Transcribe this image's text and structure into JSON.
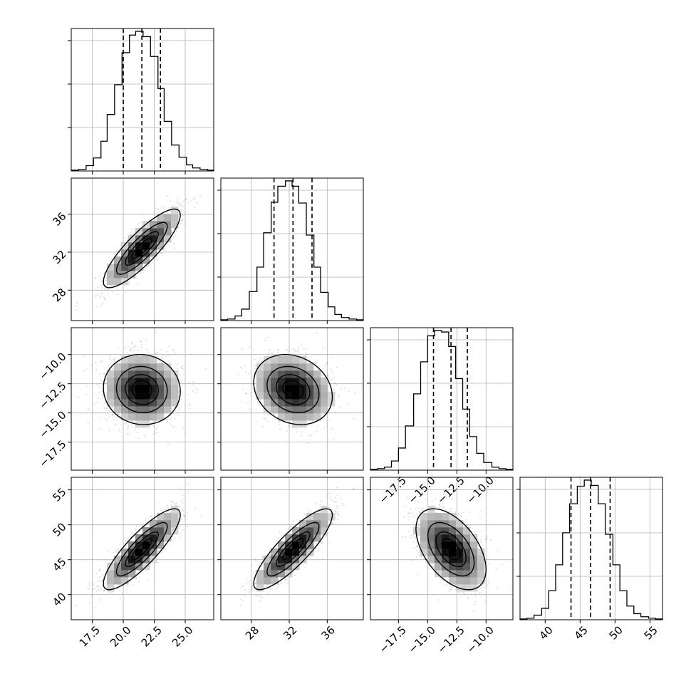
{
  "figure": {
    "type": "corner-plot",
    "colors": {
      "line": "#000000",
      "grid": "#b0b0b0",
      "scatter": "#8a8a8a",
      "density_low": "#ffffff",
      "density_high": "#000000",
      "background": "#ffffff"
    }
  },
  "chart_data": [
    {
      "type": "histogram",
      "panel": "hist-param-1",
      "parameter_index": 0,
      "xlim": [
        15.8,
        27.3
      ],
      "x_ticks": [
        17.5,
        20.0,
        22.5,
        25.0
      ],
      "x_tick_labels": [],
      "quantiles": [
        20.0,
        21.5,
        23.0
      ],
      "bin_edges": [
        15.8,
        16.4,
        17.0,
        17.6,
        18.2,
        18.7,
        19.3,
        19.9,
        20.5,
        21.0,
        21.6,
        22.2,
        22.8,
        23.3,
        23.9,
        24.5,
        25.1,
        25.6,
        26.2,
        26.8,
        27.3
      ],
      "counts": [
        1,
        2,
        7,
        17,
        39,
        74,
        113,
        155,
        178,
        183,
        176,
        150,
        108,
        65,
        34,
        18,
        8,
        4,
        2,
        1
      ],
      "grid": true
    },
    {
      "type": "histogram",
      "panel": "hist-param-2",
      "parameter_index": 1,
      "xlim": [
        24.8,
        39.8
      ],
      "x_ticks": [
        28,
        32,
        36
      ],
      "x_tick_labels": [],
      "quantiles": [
        30.4,
        32.4,
        34.4
      ],
      "bin_edges": [
        24.8,
        25.5,
        26.3,
        27.0,
        27.8,
        28.6,
        29.3,
        30.1,
        30.8,
        31.6,
        32.3,
        33.0,
        33.8,
        34.6,
        35.3,
        36.1,
        36.8,
        37.5,
        38.3,
        39.1,
        39.8
      ],
      "counts": [
        1,
        2,
        6,
        15,
        38,
        70,
        115,
        155,
        176,
        183,
        176,
        154,
        112,
        70,
        37,
        18,
        8,
        4,
        2,
        1
      ],
      "grid": true
    },
    {
      "type": "histogram",
      "panel": "hist-param-3",
      "parameter_index": 2,
      "xlim": [
        -19.9,
        -7.7
      ],
      "x_ticks": [
        -17.5,
        -15.0,
        -12.5,
        -10.0
      ],
      "x_tick_labels": [
        "−17.5",
        "−15.0",
        "−12.5",
        "−10.0"
      ],
      "quantiles": [
        -14.5,
        -13.0,
        -11.6
      ],
      "bin_edges": [
        -19.9,
        -19.3,
        -18.7,
        -18.1,
        -17.5,
        -16.9,
        -16.2,
        -15.6,
        -15.0,
        -14.4,
        -13.8,
        -13.2,
        -12.6,
        -12.0,
        -11.4,
        -10.8,
        -10.2,
        -9.5,
        -8.9,
        -8.3,
        -7.7
      ],
      "counts": [
        1,
        2,
        4,
        12,
        29,
        58,
        100,
        142,
        176,
        183,
        181,
        162,
        120,
        80,
        44,
        22,
        10,
        4,
        2,
        1
      ],
      "grid": true
    },
    {
      "type": "histogram",
      "panel": "hist-param-4",
      "parameter_index": 3,
      "xlim": [
        36.4,
        56.8
      ],
      "x_ticks": [
        40,
        45,
        50,
        55
      ],
      "x_tick_labels": [
        "40",
        "45",
        "50",
        "55"
      ],
      "quantiles": [
        43.7,
        46.5,
        49.3
      ],
      "bin_edges": [
        36.4,
        37.4,
        38.4,
        39.5,
        40.5,
        41.5,
        42.5,
        43.5,
        44.6,
        45.6,
        46.6,
        47.6,
        48.6,
        49.7,
        50.7,
        51.7,
        52.7,
        53.7,
        54.8,
        55.8,
        56.8
      ],
      "counts": [
        1,
        2,
        6,
        15,
        38,
        72,
        114,
        152,
        175,
        183,
        176,
        152,
        112,
        72,
        38,
        18,
        8,
        4,
        2,
        1
      ],
      "grid": true
    },
    {
      "type": "density-2d",
      "panel": "pair-2-1",
      "x_parameter_index": 0,
      "y_parameter_index": 1,
      "xlim": [
        15.8,
        27.3
      ],
      "ylim": [
        24.8,
        39.8
      ],
      "x_ticks": [
        17.5,
        20.0,
        22.5,
        25.0
      ],
      "y_ticks": [
        28,
        32,
        36
      ],
      "x_tick_labels": [],
      "y_tick_labels": [
        "28",
        "32",
        "36"
      ],
      "mean": [
        21.5,
        32.4
      ],
      "std": [
        1.5,
        2.0
      ],
      "correlation": 0.85,
      "contour_levels_sigma": [
        0.5,
        1.0,
        1.5,
        2.0
      ],
      "grid": true
    },
    {
      "type": "density-2d",
      "panel": "pair-3-1",
      "x_parameter_index": 0,
      "y_parameter_index": 2,
      "xlim": [
        15.8,
        27.3
      ],
      "ylim": [
        -19.9,
        -7.7
      ],
      "x_ticks": [
        17.5,
        20.0,
        22.5,
        25.0
      ],
      "y_ticks": [
        -17.5,
        -15.0,
        -12.5,
        -10.0
      ],
      "x_tick_labels": [],
      "y_tick_labels": [
        "−17.5",
        "−15.0",
        "−12.5",
        "−10.0"
      ],
      "mean": [
        21.5,
        -13.0
      ],
      "std": [
        1.5,
        1.45
      ],
      "correlation": -0.05,
      "contour_levels_sigma": [
        0.5,
        1.0,
        1.5,
        2.0
      ],
      "grid": true
    },
    {
      "type": "density-2d",
      "panel": "pair-3-2",
      "x_parameter_index": 1,
      "y_parameter_index": 2,
      "xlim": [
        24.8,
        39.8
      ],
      "ylim": [
        -19.9,
        -7.7
      ],
      "x_ticks": [
        28,
        32,
        36
      ],
      "y_ticks": [
        -17.5,
        -15.0,
        -12.5,
        -10.0
      ],
      "x_tick_labels": [],
      "y_tick_labels": [],
      "mean": [
        32.4,
        -13.0
      ],
      "std": [
        2.0,
        1.45
      ],
      "correlation": -0.2,
      "contour_levels_sigma": [
        0.5,
        1.0,
        1.5,
        2.0
      ],
      "grid": true
    },
    {
      "type": "density-2d",
      "panel": "pair-4-1",
      "x_parameter_index": 0,
      "y_parameter_index": 3,
      "xlim": [
        15.8,
        27.3
      ],
      "ylim": [
        36.4,
        56.8
      ],
      "x_ticks": [
        17.5,
        20.0,
        22.5,
        25.0
      ],
      "y_ticks": [
        40,
        45,
        50,
        55
      ],
      "x_tick_labels": [
        "17.5",
        "20.0",
        "22.5",
        "25.0"
      ],
      "y_tick_labels": [
        "40",
        "45",
        "50",
        "55"
      ],
      "mean": [
        21.5,
        46.5
      ],
      "std": [
        1.5,
        2.8
      ],
      "correlation": 0.85,
      "contour_levels_sigma": [
        0.5,
        1.0,
        1.5,
        2.0
      ],
      "grid": true
    },
    {
      "type": "density-2d",
      "panel": "pair-4-2",
      "x_parameter_index": 1,
      "y_parameter_index": 3,
      "xlim": [
        24.8,
        39.8
      ],
      "ylim": [
        36.4,
        56.8
      ],
      "x_ticks": [
        28,
        32,
        36
      ],
      "y_ticks": [
        40,
        45,
        50,
        55
      ],
      "x_tick_labels": [
        "28",
        "32",
        "36"
      ],
      "y_tick_labels": [],
      "mean": [
        32.4,
        46.5
      ],
      "std": [
        2.0,
        2.8
      ],
      "correlation": 0.85,
      "contour_levels_sigma": [
        0.5,
        1.0,
        1.5,
        2.0
      ],
      "grid": true
    },
    {
      "type": "density-2d",
      "panel": "pair-4-3",
      "x_parameter_index": 2,
      "y_parameter_index": 3,
      "xlim": [
        -19.9,
        -7.7
      ],
      "ylim": [
        36.4,
        56.8
      ],
      "x_ticks": [
        -17.5,
        -15.0,
        -12.5,
        -10.0
      ],
      "y_ticks": [
        40,
        45,
        50,
        55
      ],
      "x_tick_labels": [
        "−17.5",
        "−15.0",
        "−12.5",
        "−10.0"
      ],
      "y_tick_labels": [],
      "mean": [
        -13.0,
        46.5
      ],
      "std": [
        1.45,
        2.8
      ],
      "correlation": -0.5,
      "contour_levels_sigma": [
        0.5,
        1.0,
        1.5,
        2.0
      ],
      "grid": true
    }
  ]
}
